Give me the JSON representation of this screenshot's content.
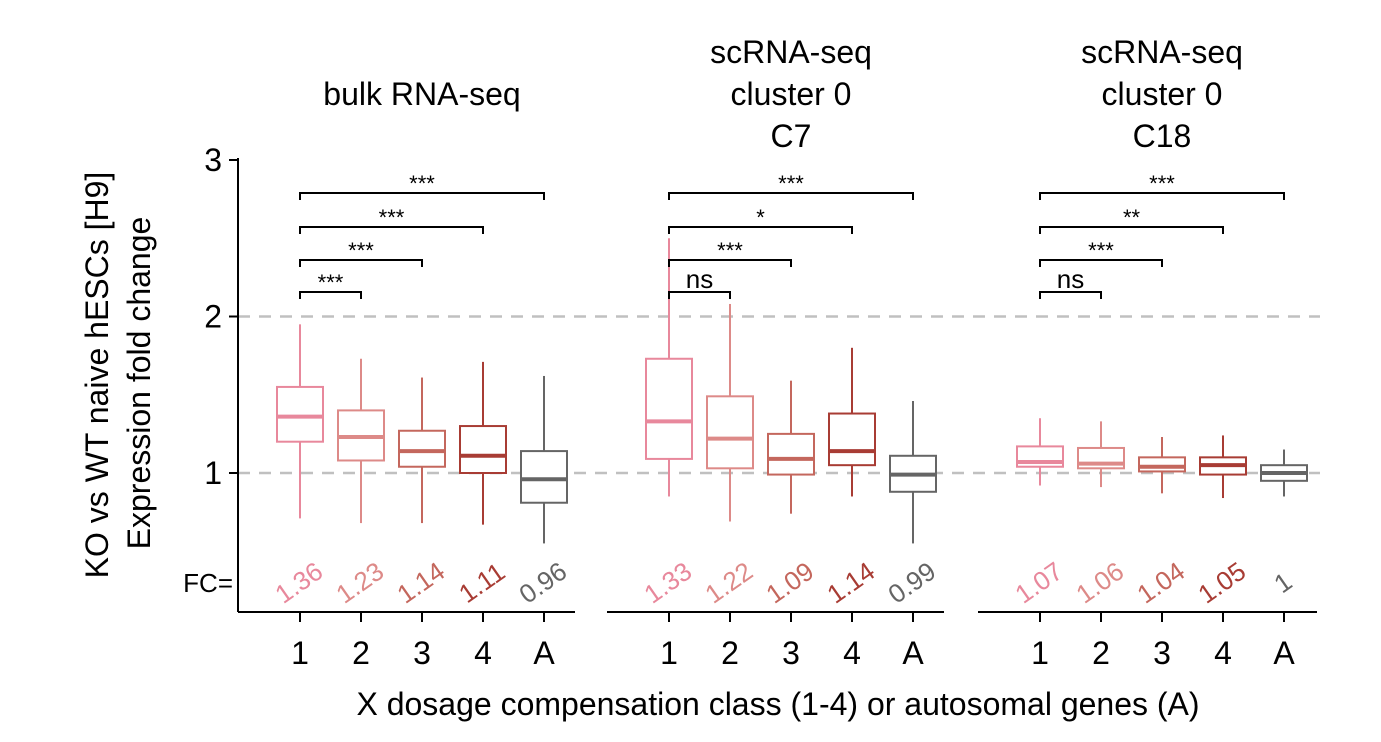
{
  "colors": {
    "class_1": "#e8889c",
    "class_2": "#dd8a88",
    "class_3": "#c4675d",
    "class_4": "#a83c34",
    "A": "#656565",
    "reference_line": "#c0c0c0"
  },
  "chart_data": {
    "type": "boxplot",
    "ylabel": [
      "KO vs WT naive hESCs [H9]",
      "Expression fold change"
    ],
    "xlabel": "X dosage compensation class (1-4) or autosomal genes (A)",
    "categories": [
      "1",
      "2",
      "3",
      "4",
      "A"
    ],
    "yticks": [
      "1",
      "2",
      "3"
    ],
    "ylim": [
      0.6,
      3.1
    ],
    "reference_lines": [
      1,
      2
    ],
    "fc_prefix": "FC=",
    "panels": [
      {
        "title": [
          "bulk RNA-seq"
        ],
        "boxes": [
          {
            "category": "1",
            "whisker_low": 0.71,
            "q1": 1.2,
            "median": 1.36,
            "q3": 1.55,
            "whisker_high": 1.95
          },
          {
            "category": "2",
            "whisker_low": 0.68,
            "q1": 1.08,
            "median": 1.23,
            "q3": 1.4,
            "whisker_high": 1.73
          },
          {
            "category": "3",
            "whisker_low": 0.68,
            "q1": 1.04,
            "median": 1.14,
            "q3": 1.27,
            "whisker_high": 1.61
          },
          {
            "category": "4",
            "whisker_low": 0.67,
            "q1": 1.0,
            "median": 1.11,
            "q3": 1.3,
            "whisker_high": 1.71
          },
          {
            "category": "A",
            "whisker_low": 0.55,
            "q1": 0.81,
            "median": 0.96,
            "q3": 1.14,
            "whisker_high": 1.62
          }
        ],
        "fc_labels": [
          "1.36",
          "1.23",
          "1.14",
          "1.11",
          "0.96"
        ],
        "comparisons": [
          {
            "from": "1",
            "to": "2",
            "label": "***"
          },
          {
            "from": "1",
            "to": "3",
            "label": "***"
          },
          {
            "from": "1",
            "to": "4",
            "label": "***"
          },
          {
            "from": "1",
            "to": "A",
            "label": "***"
          }
        ]
      },
      {
        "title": [
          "scRNA-seq",
          "cluster 0",
          "C7"
        ],
        "boxes": [
          {
            "category": "1",
            "whisker_low": 0.85,
            "q1": 1.09,
            "median": 1.33,
            "q3": 1.73,
            "whisker_high": 2.5
          },
          {
            "category": "2",
            "whisker_low": 0.69,
            "q1": 1.03,
            "median": 1.22,
            "q3": 1.49,
            "whisker_high": 2.08
          },
          {
            "category": "3",
            "whisker_low": 0.74,
            "q1": 0.99,
            "median": 1.09,
            "q3": 1.25,
            "whisker_high": 1.59
          },
          {
            "category": "4",
            "whisker_low": 0.85,
            "q1": 1.05,
            "median": 1.14,
            "q3": 1.38,
            "whisker_high": 1.8
          },
          {
            "category": "A",
            "whisker_low": 0.55,
            "q1": 0.88,
            "median": 0.99,
            "q3": 1.11,
            "whisker_high": 1.46
          }
        ],
        "fc_labels": [
          "1.33",
          "1.22",
          "1.09",
          "1.14",
          "0.99"
        ],
        "comparisons": [
          {
            "from": "1",
            "to": "2",
            "label": "ns"
          },
          {
            "from": "1",
            "to": "3",
            "label": "***"
          },
          {
            "from": "1",
            "to": "4",
            "label": "*"
          },
          {
            "from": "1",
            "to": "A",
            "label": "***"
          }
        ]
      },
      {
        "title": [
          "scRNA-seq",
          "cluster 0",
          "C18"
        ],
        "boxes": [
          {
            "category": "1",
            "whisker_low": 0.92,
            "q1": 1.04,
            "median": 1.07,
            "q3": 1.17,
            "whisker_high": 1.35
          },
          {
            "category": "2",
            "whisker_low": 0.91,
            "q1": 1.03,
            "median": 1.06,
            "q3": 1.16,
            "whisker_high": 1.33
          },
          {
            "category": "3",
            "whisker_low": 0.87,
            "q1": 1.01,
            "median": 1.04,
            "q3": 1.1,
            "whisker_high": 1.23
          },
          {
            "category": "4",
            "whisker_low": 0.84,
            "q1": 0.99,
            "median": 1.05,
            "q3": 1.1,
            "whisker_high": 1.24
          },
          {
            "category": "A",
            "whisker_low": 0.85,
            "q1": 0.95,
            "median": 1.0,
            "q3": 1.05,
            "whisker_high": 1.15
          }
        ],
        "fc_labels": [
          "1.07",
          "1.06",
          "1.04",
          "1.05",
          "1"
        ],
        "comparisons": [
          {
            "from": "1",
            "to": "2",
            "label": "ns"
          },
          {
            "from": "1",
            "to": "3",
            "label": "***"
          },
          {
            "from": "1",
            "to": "4",
            "label": "**"
          },
          {
            "from": "1",
            "to": "A",
            "label": "***"
          }
        ]
      }
    ]
  }
}
